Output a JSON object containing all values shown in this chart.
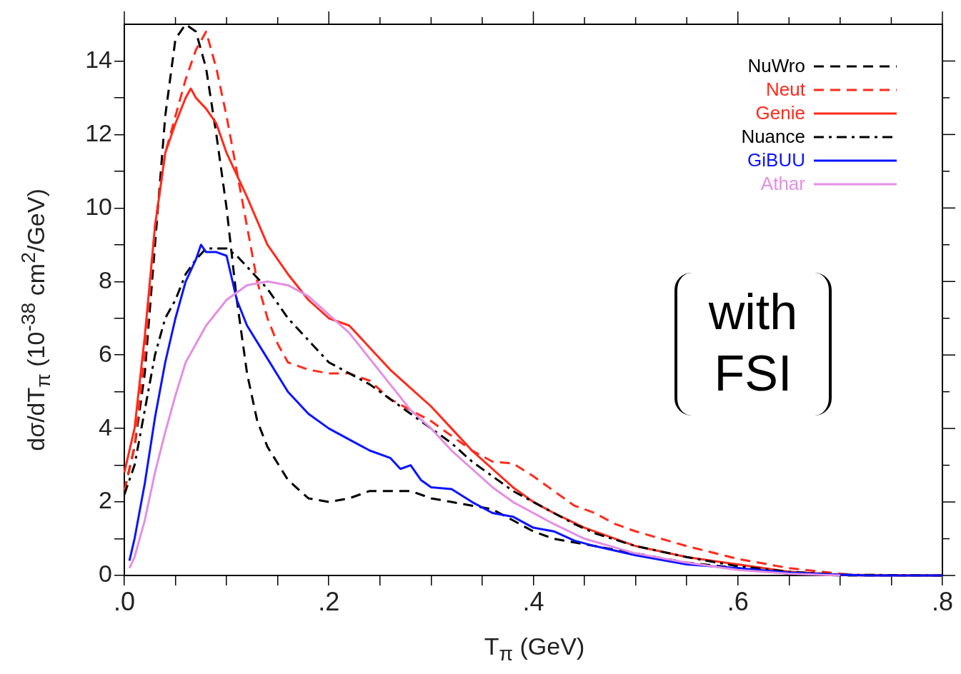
{
  "chart_data": {
    "type": "line",
    "xlabel": "T$_{π}$  (GeV)",
    "ylabel": "dσ/dT$_{π}$  (10$^{-38}$ cm$^{2}$/GeV)",
    "xlim": [
      0,
      0.8
    ],
    "ylim": [
      0,
      15
    ],
    "xticks": [
      {
        "value": 0,
        "label": ".0"
      },
      {
        "value": 0.05,
        "label": null
      },
      {
        "value": 0.1,
        "label": null
      },
      {
        "value": 0.15,
        "label": null
      },
      {
        "value": 0.2,
        "label": ".2"
      },
      {
        "value": 0.25,
        "label": null
      },
      {
        "value": 0.3,
        "label": null
      },
      {
        "value": 0.35,
        "label": null
      },
      {
        "value": 0.4,
        "label": ".4"
      },
      {
        "value": 0.45,
        "label": null
      },
      {
        "value": 0.5,
        "label": null
      },
      {
        "value": 0.55,
        "label": null
      },
      {
        "value": 0.6,
        "label": ".6"
      },
      {
        "value": 0.65,
        "label": null
      },
      {
        "value": 0.7,
        "label": null
      },
      {
        "value": 0.75,
        "label": null
      },
      {
        "value": 0.8,
        "label": ".8"
      }
    ],
    "yticks": [
      0,
      {
        "value": 1,
        "label": null
      },
      2,
      {
        "value": 3,
        "label": null
      },
      4,
      {
        "value": 5,
        "label": null
      },
      6,
      {
        "value": 7,
        "label": null
      },
      8,
      {
        "value": 9,
        "label": null
      },
      10,
      {
        "value": 11,
        "label": null
      },
      12,
      {
        "value": 13,
        "label": null
      },
      14
    ],
    "grid": false,
    "legend": "top right",
    "marker": "none",
    "annotations": [
      "with FSI"
    ],
    "series": [
      {
        "name": "NuWro",
        "color": "#000000",
        "line_style": "dashed",
        "x": [
          0,
          0.01,
          0.02,
          0.03,
          0.04,
          0.05,
          0.06,
          0.07,
          0.08,
          0.09,
          0.1,
          0.11,
          0.12,
          0.13,
          0.14,
          0.16,
          0.18,
          0.2,
          0.22,
          0.24,
          0.26,
          0.28,
          0.3,
          0.32,
          0.34,
          0.36,
          0.38,
          0.4,
          0.42,
          0.45,
          0.5,
          0.55,
          0.6,
          0.65,
          0.7,
          0.8
        ],
        "values": [
          2.3,
          3.5,
          5.5,
          9,
          12.5,
          14.6,
          15,
          14.8,
          13.8,
          12,
          10,
          7.5,
          5.5,
          4.2,
          3.5,
          2.6,
          2.1,
          2,
          2.1,
          2.3,
          2.3,
          2.3,
          2.1,
          2,
          1.9,
          1.8,
          1.5,
          1.2,
          1,
          0.85,
          0.6,
          0.35,
          0.2,
          0.05,
          0,
          0
        ]
      },
      {
        "name": "Neut",
        "color": "#ff2a1a",
        "line_style": "dashed",
        "x": [
          0,
          0.01,
          0.02,
          0.03,
          0.04,
          0.05,
          0.06,
          0.07,
          0.08,
          0.09,
          0.1,
          0.11,
          0.12,
          0.13,
          0.14,
          0.15,
          0.16,
          0.18,
          0.2,
          0.22,
          0.24,
          0.26,
          0.28,
          0.3,
          0.32,
          0.34,
          0.36,
          0.38,
          0.4,
          0.42,
          0.44,
          0.46,
          0.48,
          0.5,
          0.55,
          0.6,
          0.65,
          0.7,
          0.72,
          0.8
        ],
        "values": [
          2.3,
          3.5,
          6,
          9.5,
          11.5,
          12.5,
          13.5,
          14.3,
          14.8,
          13.8,
          12.5,
          11,
          9.5,
          8,
          7,
          6.3,
          5.8,
          5.6,
          5.5,
          5.5,
          5.3,
          4.8,
          4.5,
          4.2,
          3.8,
          3.4,
          3.1,
          3.05,
          2.7,
          2.3,
          1.9,
          1.7,
          1.4,
          1.2,
          0.8,
          0.45,
          0.2,
          0.05,
          0,
          0
        ]
      },
      {
        "name": "Genie",
        "color": "#ff2a1a",
        "line_style": "solid",
        "x": [
          0,
          0.01,
          0.02,
          0.03,
          0.04,
          0.05,
          0.06,
          0.065,
          0.07,
          0.08,
          0.09,
          0.1,
          0.12,
          0.14,
          0.16,
          0.18,
          0.2,
          0.22,
          0.24,
          0.26,
          0.28,
          0.3,
          0.32,
          0.34,
          0.36,
          0.38,
          0.4,
          0.42,
          0.45,
          0.5,
          0.55,
          0.6,
          0.65,
          0.7,
          0.8
        ],
        "values": [
          2.8,
          4,
          6.5,
          9.5,
          11.5,
          12.3,
          13,
          13.25,
          13,
          12.7,
          12.3,
          11.5,
          10.3,
          9,
          8.2,
          7.5,
          7,
          6.8,
          6.2,
          5.6,
          5.1,
          4.6,
          4,
          3.4,
          2.9,
          2.4,
          2,
          1.7,
          1.3,
          0.8,
          0.5,
          0.3,
          0.1,
          0.02,
          0
        ]
      },
      {
        "name": "Nuance",
        "color": "#000000",
        "line_style": "dashdot",
        "x": [
          0,
          0.01,
          0.02,
          0.03,
          0.04,
          0.05,
          0.06,
          0.07,
          0.08,
          0.09,
          0.1,
          0.11,
          0.12,
          0.14,
          0.16,
          0.18,
          0.2,
          0.22,
          0.24,
          0.26,
          0.28,
          0.3,
          0.32,
          0.34,
          0.36,
          0.38,
          0.4,
          0.42,
          0.44,
          0.46,
          0.5,
          0.55,
          0.6,
          0.65,
          0.7,
          0.8
        ],
        "values": [
          2.2,
          3,
          4.5,
          6,
          7,
          7.5,
          8.2,
          8.6,
          8.9,
          8.9,
          8.9,
          8.7,
          8.4,
          7.8,
          7,
          6.4,
          5.8,
          5.5,
          5.2,
          4.8,
          4.4,
          4,
          3.6,
          3.1,
          2.7,
          2.3,
          2,
          1.7,
          1.4,
          1.15,
          0.8,
          0.5,
          0.25,
          0.1,
          0.02,
          0
        ]
      },
      {
        "name": "GiBUU",
        "color": "#0a14ff",
        "line_style": "solid",
        "x": [
          0.005,
          0.01,
          0.02,
          0.03,
          0.04,
          0.05,
          0.06,
          0.07,
          0.075,
          0.08,
          0.09,
          0.1,
          0.11,
          0.12,
          0.14,
          0.16,
          0.18,
          0.2,
          0.22,
          0.24,
          0.26,
          0.27,
          0.28,
          0.29,
          0.3,
          0.32,
          0.34,
          0.36,
          0.38,
          0.4,
          0.42,
          0.44,
          0.46,
          0.5,
          0.55,
          0.6,
          0.65,
          0.7,
          0.73,
          0.8
        ],
        "values": [
          0.4,
          1,
          2.5,
          4.3,
          5.8,
          7,
          8,
          8.6,
          9,
          8.8,
          8.8,
          8.7,
          7.5,
          6.8,
          5.9,
          5,
          4.4,
          4,
          3.7,
          3.4,
          3.2,
          2.9,
          3,
          2.6,
          2.4,
          2.35,
          2,
          1.7,
          1.6,
          1.3,
          1.2,
          0.95,
          0.8,
          0.55,
          0.3,
          0.2,
          0.08,
          0.02,
          0,
          0
        ]
      },
      {
        "name": "Athar",
        "color": "#e48ee4",
        "line_style": "solid",
        "x": [
          0.005,
          0.01,
          0.02,
          0.03,
          0.04,
          0.05,
          0.06,
          0.08,
          0.1,
          0.12,
          0.14,
          0.16,
          0.18,
          0.2,
          0.22,
          0.24,
          0.26,
          0.28,
          0.3,
          0.32,
          0.34,
          0.36,
          0.38,
          0.4,
          0.42,
          0.45,
          0.5,
          0.55,
          0.6,
          0.65,
          0.7
        ],
        "values": [
          0.2,
          0.5,
          1.5,
          2.8,
          3.9,
          4.9,
          5.8,
          6.8,
          7.5,
          7.9,
          8,
          7.9,
          7.6,
          7.1,
          6.6,
          5.9,
          5.2,
          4.5,
          4,
          3.4,
          2.9,
          2.4,
          2,
          1.7,
          1.4,
          1,
          0.6,
          0.35,
          0.15,
          0.05,
          0
        ]
      }
    ]
  }
}
